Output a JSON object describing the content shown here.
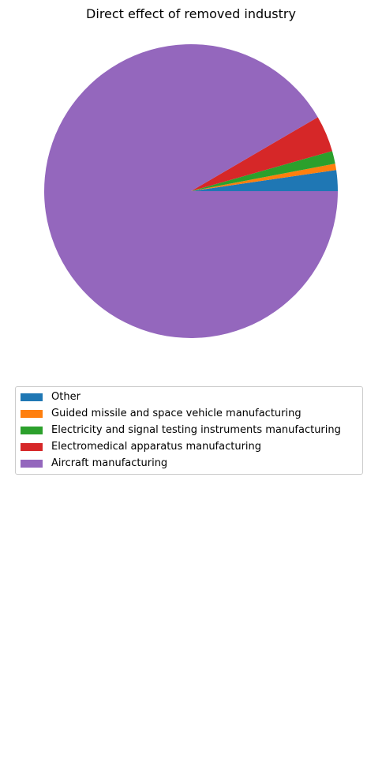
{
  "chart_data": {
    "type": "pie",
    "title": "Direct effect of removed industry",
    "slices": [
      {
        "label": "Other",
        "value": 2.3,
        "color": "#1f77b4"
      },
      {
        "label": "Guided missile and space vehicle manufacturing",
        "value": 0.7,
        "color": "#ff7f0e"
      },
      {
        "label": "Electricity and signal testing instruments manufacturing",
        "value": 1.4,
        "color": "#2ca02c"
      },
      {
        "label": "Electromedical apparatus manufacturing",
        "value": 4.0,
        "color": "#d62728"
      },
      {
        "label": "Aircraft manufacturing",
        "value": 91.6,
        "color": "#9467bd"
      }
    ],
    "start_angle": 0,
    "direction": "counterclockwise",
    "legend_position": "below"
  }
}
